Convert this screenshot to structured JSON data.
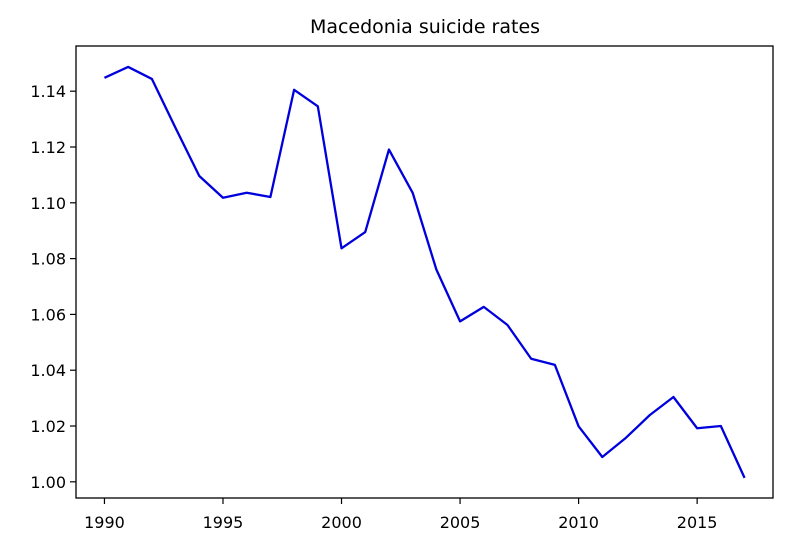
{
  "chart_data": {
    "type": "line",
    "title": "Macedonia suicide rates",
    "xlabel": "",
    "ylabel": "",
    "xlim": [
      1988.8,
      2018.2
    ],
    "ylim": [
      0.9942,
      1.1562
    ],
    "x_ticks": [
      1990,
      1995,
      2000,
      2005,
      2010,
      2015
    ],
    "y_ticks": [
      1.0,
      1.02,
      1.04,
      1.06,
      1.08,
      1.1,
      1.12,
      1.14
    ],
    "y_tick_labels": [
      "1.00",
      "1.02",
      "1.04",
      "1.06",
      "1.08",
      "1.10",
      "1.12",
      "1.14"
    ],
    "grid": false,
    "series": [
      {
        "color": "#0000dd",
        "x": [
          1990,
          1991,
          1992,
          1993,
          1994,
          1995,
          1996,
          1997,
          1998,
          1999,
          2000,
          2001,
          2002,
          2003,
          2004,
          2005,
          2006,
          2007,
          2008,
          2009,
          2010,
          2011,
          2012,
          2013,
          2014,
          2015,
          2016,
          2017
        ],
        "y": [
          1.1448,
          1.1487,
          1.1444,
          1.1268,
          1.1096,
          1.1018,
          1.1036,
          1.1021,
          1.1405,
          1.1346,
          1.0837,
          1.0895,
          1.1191,
          1.1036,
          1.0761,
          1.0575,
          1.0627,
          1.0562,
          1.0441,
          1.0419,
          1.0199,
          1.0089,
          1.0158,
          1.0239,
          1.0304,
          1.0192,
          1.02,
          1.0014
        ]
      }
    ]
  }
}
